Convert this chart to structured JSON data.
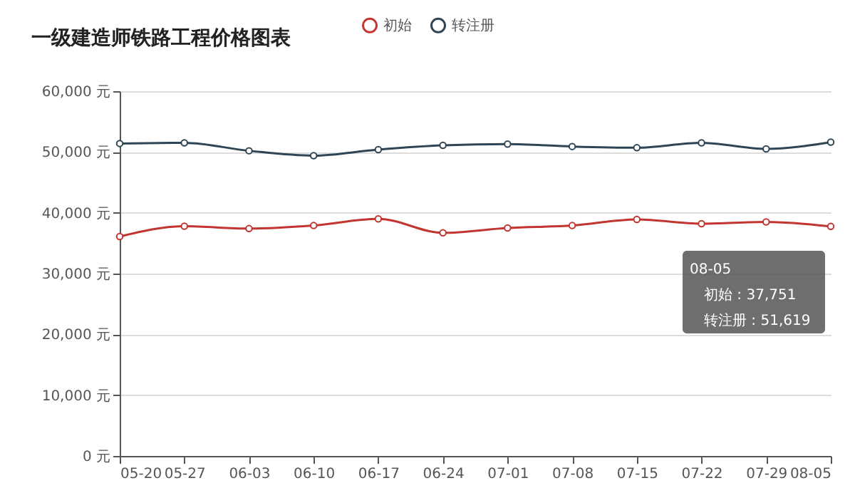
{
  "chart_data": {
    "type": "line",
    "title": "一级建造师铁路工程价格图表",
    "categories": [
      "05-20",
      "05-27",
      "06-03",
      "06-10",
      "06-17",
      "06-24",
      "07-01",
      "07-08",
      "07-15",
      "07-22",
      "07-29",
      "08-05"
    ],
    "series": [
      {
        "name": "初始",
        "color": "#c23531",
        "values": [
          36100,
          37800,
          37400,
          37900,
          39000,
          36700,
          37500,
          37900,
          38900,
          38200,
          38500,
          37751
        ]
      },
      {
        "name": "转注册",
        "color": "#2f4554",
        "values": [
          51400,
          51500,
          50200,
          49400,
          50400,
          51100,
          51300,
          50900,
          50700,
          51500,
          50500,
          51619
        ]
      }
    ],
    "ylim": [
      0,
      60000
    ],
    "yticks": [
      {
        "value": 0,
        "label": "0 元"
      },
      {
        "value": 10000,
        "label": "10,000 元"
      },
      {
        "value": 20000,
        "label": "20,000 元"
      },
      {
        "value": 30000,
        "label": "30,000 元"
      },
      {
        "value": 40000,
        "label": "40,000 元"
      },
      {
        "value": 50000,
        "label": "50,000 元"
      },
      {
        "value": 60000,
        "label": "60,000 元"
      }
    ],
    "grid": "y",
    "legend": "top",
    "marker": "circle",
    "line_style": "solid",
    "annotations": [
      "08-05",
      "初始 : 37,751",
      "转注册 : 51,619"
    ]
  }
}
